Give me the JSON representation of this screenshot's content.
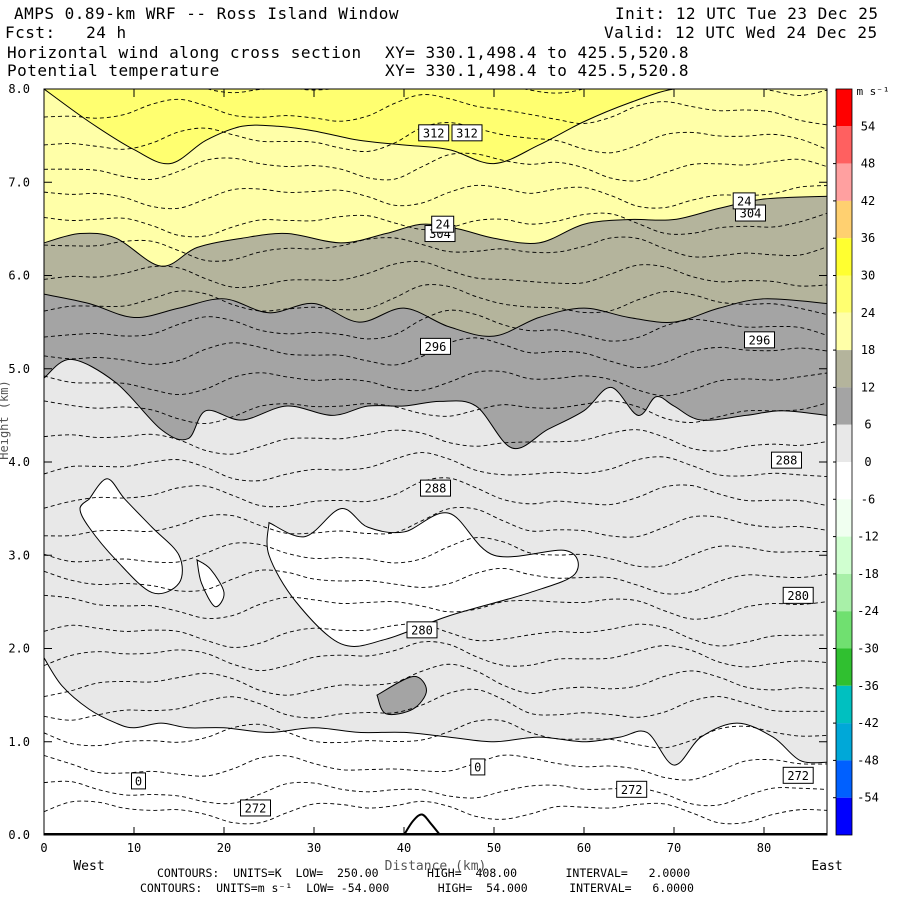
{
  "header": {
    "title": "AMPS 0.89-km WRF -- Ross Island Window",
    "fcst": "Fcst:   24 h",
    "init": "Init: 12 UTC Tue 23 Dec 25",
    "valid": "Valid: 12 UTC Wed 24 Dec 25",
    "field1": "Horizontal wind along cross section",
    "field2": "Potential temperature",
    "xy1": "XY= 330.1,498.4 to 425.5,520.8",
    "xy2": "XY= 330.1,498.4 to 425.5,520.8"
  },
  "footer": {
    "line1": "CONTOURS:  UNITS=K  LOW=  250.00       HIGH=  408.00       INTERVAL=   2.0000",
    "line2": "CONTOURS:  UNITS=m s⁻¹  LOW= -54.000       HIGH=  54.000      INTERVAL=   6.0000"
  },
  "chart_data": {
    "type": "cross-section contour",
    "xlabel": "Distance (km)",
    "ylabel": "Height (km)",
    "x_left_label": "West",
    "x_right_label": "East",
    "xlim": [
      0,
      87
    ],
    "ylim": [
      0,
      8
    ],
    "x_ticks": [
      0,
      10,
      20,
      30,
      40,
      50,
      60,
      70,
      80
    ],
    "y_ticks": [
      "0.0",
      "1.0",
      "2.0",
      "3.0",
      "4.0",
      "5.0",
      "6.0",
      "7.0",
      "8.0"
    ],
    "colorbar": {
      "units": "m s⁻¹",
      "levels": [
        54,
        48,
        42,
        36,
        30,
        24,
        18,
        12,
        6,
        0,
        -6,
        -12,
        -18,
        -24,
        -30,
        -36,
        -42,
        -48,
        -54
      ],
      "colors": [
        "#ff0000",
        "#ff6060",
        "#ffa0a0",
        "#ffd070",
        "#ffff30",
        "#ffff70",
        "#ffffa8",
        "#b4b49c",
        "#a4a4a4",
        "#e8e8e8",
        "#ffffff",
        "#f0fff0",
        "#d0ffd0",
        "#a8f0a8",
        "#70e070",
        "#30c030",
        "#00c0c0",
        "#00a8d8",
        "#0060ff",
        "#0000ff"
      ]
    },
    "wind_labels": [
      {
        "text": "0",
        "x": 10.5,
        "y": 0.58
      },
      {
        "text": "0",
        "x": 48.2,
        "y": 0.73
      },
      {
        "text": "24",
        "x": 44.3,
        "y": 6.55
      },
      {
        "text": "24",
        "x": 77.8,
        "y": 6.8
      }
    ],
    "theta_labels": [
      {
        "text": "312",
        "x": 43.3,
        "y": 7.53
      },
      {
        "text": "312",
        "x": 47.0,
        "y": 7.53
      },
      {
        "text": "304",
        "x": 44.0,
        "y": 6.45
      },
      {
        "text": "304",
        "x": 78.5,
        "y": 6.67
      },
      {
        "text": "296",
        "x": 43.5,
        "y": 5.24
      },
      {
        "text": "296",
        "x": 79.5,
        "y": 5.31
      },
      {
        "text": "288",
        "x": 43.5,
        "y": 3.72
      },
      {
        "text": "288",
        "x": 82.5,
        "y": 4.02
      },
      {
        "text": "280",
        "x": 42.0,
        "y": 2.2
      },
      {
        "text": "280",
        "x": 83.8,
        "y": 2.57
      },
      {
        "text": "272",
        "x": 23.5,
        "y": 0.29
      },
      {
        "text": "272",
        "x": 65.3,
        "y": 0.49
      },
      {
        "text": "272",
        "x": 83.8,
        "y": 0.64
      }
    ],
    "regions": {
      "yellow_band": {
        "x": [
          0,
          5,
          10,
          14,
          18,
          22,
          26,
          30,
          35,
          40,
          45,
          50,
          55,
          60,
          65,
          70,
          75,
          80,
          87
        ],
        "y": [
          8.0,
          7.65,
          7.35,
          7.2,
          7.45,
          7.6,
          7.6,
          7.55,
          7.45,
          7.4,
          7.35,
          7.2,
          7.4,
          7.65,
          7.85,
          8.0,
          8.0,
          8.0,
          8.0
        ]
      },
      "wind_24_top": {
        "x": [
          0,
          4,
          8,
          13,
          17,
          22,
          27,
          33,
          38,
          42,
          46,
          50,
          55,
          60,
          65,
          70,
          75,
          80,
          87
        ],
        "y": [
          6.35,
          6.45,
          6.4,
          6.1,
          6.3,
          6.4,
          6.45,
          6.35,
          6.45,
          6.55,
          6.5,
          6.4,
          6.35,
          6.55,
          6.6,
          6.6,
          6.72,
          6.82,
          6.85
        ]
      },
      "wind_12_top": {
        "x": [
          0,
          5,
          10,
          15,
          20,
          25,
          30,
          35,
          40,
          45,
          50,
          55,
          60,
          65,
          70,
          75,
          80,
          87
        ],
        "y": [
          5.8,
          5.7,
          5.55,
          5.65,
          5.75,
          5.6,
          5.7,
          5.5,
          5.65,
          5.45,
          5.35,
          5.55,
          5.65,
          5.55,
          5.5,
          5.65,
          5.75,
          5.7
        ]
      },
      "wind_12_bottom": {
        "x": [
          0,
          3,
          8,
          13,
          16,
          18,
          22,
          27,
          32,
          36,
          40,
          44,
          48,
          52,
          56,
          60,
          63,
          66,
          68,
          70,
          73,
          78,
          82,
          87
        ],
        "y": [
          4.9,
          5.1,
          4.85,
          4.35,
          4.25,
          4.55,
          4.45,
          4.6,
          4.5,
          4.6,
          4.6,
          4.65,
          4.6,
          4.15,
          4.35,
          4.55,
          4.8,
          4.5,
          4.7,
          4.6,
          4.45,
          4.5,
          4.55,
          4.5
        ]
      },
      "wind_6_bottom": {
        "x": [
          0,
          2,
          5,
          8,
          10,
          13,
          16,
          20,
          25,
          30,
          35,
          40,
          45,
          50,
          55,
          60,
          64,
          67,
          70,
          73,
          77,
          81,
          84,
          87
        ],
        "y": [
          1.9,
          1.6,
          1.35,
          1.2,
          1.15,
          1.2,
          1.15,
          1.15,
          1.1,
          1.15,
          1.1,
          1.1,
          1.05,
          1.0,
          1.05,
          1.0,
          1.05,
          1.1,
          0.75,
          1.05,
          1.2,
          1.05,
          0.8,
          0.78
        ]
      }
    }
  }
}
